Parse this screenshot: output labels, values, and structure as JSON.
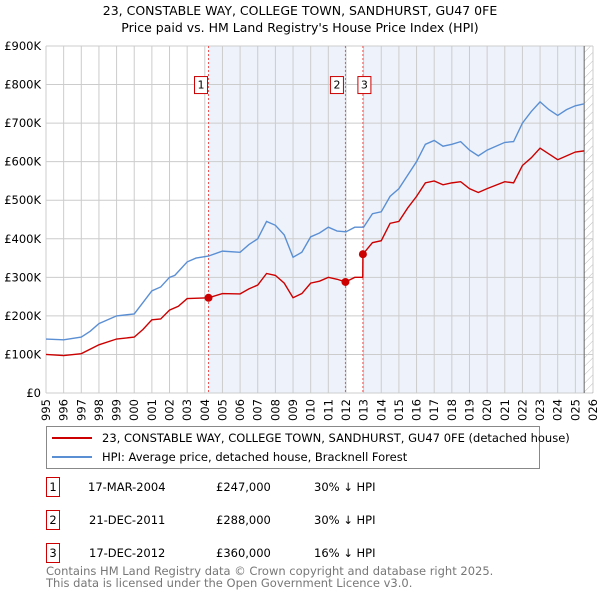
{
  "chart_data": {
    "type": "line",
    "title": "23, CONSTABLE WAY, COLLEGE TOWN, SANDHURST, GU47 0FE",
    "subtitle": "Price paid vs. HM Land Registry's House Price Index (HPI)",
    "xlim": [
      1995,
      2026
    ],
    "ylim": [
      0,
      900000
    ],
    "x_ticks": [
      "1995",
      "1996",
      "1997",
      "1998",
      "1999",
      "2000",
      "2001",
      "2002",
      "2003",
      "2004",
      "2005",
      "2006",
      "2007",
      "2008",
      "2009",
      "2010",
      "2011",
      "2012",
      "2013",
      "2014",
      "2015",
      "2016",
      "2017",
      "2018",
      "2019",
      "2020",
      "2021",
      "2022",
      "2023",
      "2024",
      "2025",
      "2026"
    ],
    "y_ticks": [
      {
        "v": 0,
        "label": "£0"
      },
      {
        "v": 100000,
        "label": "£100K"
      },
      {
        "v": 200000,
        "label": "£200K"
      },
      {
        "v": 300000,
        "label": "£300K"
      },
      {
        "v": 400000,
        "label": "£400K"
      },
      {
        "v": 500000,
        "label": "£500K"
      },
      {
        "v": 600000,
        "label": "£600K"
      },
      {
        "v": 700000,
        "label": "£700K"
      },
      {
        "v": 800000,
        "label": "£800K"
      },
      {
        "v": 900000,
        "label": "£900K"
      }
    ],
    "series": [
      {
        "name": "23, CONSTABLE WAY, COLLEGE TOWN, SANDHURST, GU47 0FE (detached house)",
        "color": "#cc0000",
        "x": [
          1995,
          1996,
          1997,
          1998,
          1999,
          2000,
          2000.5,
          2001,
          2001.5,
          2002,
          2002.5,
          2003,
          2004.21,
          2005,
          2006,
          2006.5,
          2007,
          2007.5,
          2008,
          2008.5,
          2009,
          2009.5,
          2010,
          2010.5,
          2011,
          2011.5,
          2011.97,
          2012.5,
          2012.95,
          2012.96,
          2013.5,
          2014,
          2014.5,
          2015,
          2015.5,
          2016,
          2016.5,
          2017,
          2017.5,
          2018,
          2018.5,
          2019,
          2019.5,
          2020,
          2021,
          2021.5,
          2022,
          2022.5,
          2023,
          2023.5,
          2024,
          2024.5,
          2025,
          2025.5
        ],
        "y": [
          100,
          97,
          102,
          125,
          140,
          145,
          165,
          190,
          192,
          215,
          225,
          245,
          247,
          258,
          257,
          270,
          280,
          310,
          305,
          285,
          247,
          258,
          285,
          290,
          300,
          295,
          288,
          300,
          300,
          360,
          390,
          395,
          440,
          445,
          480,
          510,
          545,
          550,
          540,
          545,
          548,
          530,
          520,
          530,
          548,
          545,
          590,
          610,
          635,
          620,
          605,
          615,
          625,
          628
        ]
      },
      {
        "name": "HPI: Average price, detached house, Bracknell Forest",
        "color": "#5b8fd4",
        "x": [
          1995,
          1996,
          1997,
          1997.5,
          1998,
          1999,
          2000,
          2000.5,
          2001,
          2001.5,
          2002,
          2002.3,
          2003,
          2003.5,
          2004.2,
          2005,
          2006,
          2006.5,
          2007,
          2007.5,
          2008,
          2008.5,
          2009,
          2009.5,
          2010,
          2010.5,
          2011,
          2011.5,
          2012,
          2012.5,
          2013,
          2013.5,
          2014,
          2014.5,
          2015,
          2015.5,
          2016,
          2016.5,
          2017,
          2017.5,
          2018,
          2018.5,
          2019,
          2019.5,
          2020,
          2021,
          2021.5,
          2022,
          2022.5,
          2023,
          2023.5,
          2024,
          2024.5,
          2025,
          2025.5
        ],
        "y": [
          140,
          138,
          145,
          160,
          180,
          200,
          205,
          235,
          265,
          275,
          300,
          305,
          340,
          350,
          355,
          368,
          365,
          385,
          400,
          445,
          435,
          410,
          352,
          365,
          405,
          415,
          430,
          420,
          418,
          430,
          430,
          465,
          470,
          510,
          530,
          565,
          600,
          645,
          655,
          640,
          645,
          652,
          630,
          615,
          630,
          650,
          652,
          700,
          730,
          755,
          735,
          720,
          735,
          745,
          750
        ]
      }
    ],
    "y_unit": "thousands GBP",
    "sales": [
      {
        "n": "1",
        "x": 2004.21,
        "y": 247
      },
      {
        "n": "2",
        "x": 2011.97,
        "y": 288
      },
      {
        "n": "3",
        "x": 2012.96,
        "y": 360
      }
    ],
    "legend_placement": "below"
  },
  "colors": {
    "property": "#cc0000",
    "hpi": "#5b8fd4",
    "shade": "#eef3fb"
  },
  "table": [
    {
      "n": "1",
      "date": "17-MAR-2004",
      "price": "£247,000",
      "diff": "30% ↓ HPI"
    },
    {
      "n": "2",
      "date": "21-DEC-2011",
      "price": "£288,000",
      "diff": "30% ↓ HPI"
    },
    {
      "n": "3",
      "date": "17-DEC-2012",
      "price": "£360,000",
      "diff": "16% ↓ HPI"
    }
  ],
  "footer": {
    "line1": "Contains HM Land Registry data © Crown copyright and database right 2025.",
    "line2": "This data is licensed under the Open Government Licence v3.0."
  }
}
